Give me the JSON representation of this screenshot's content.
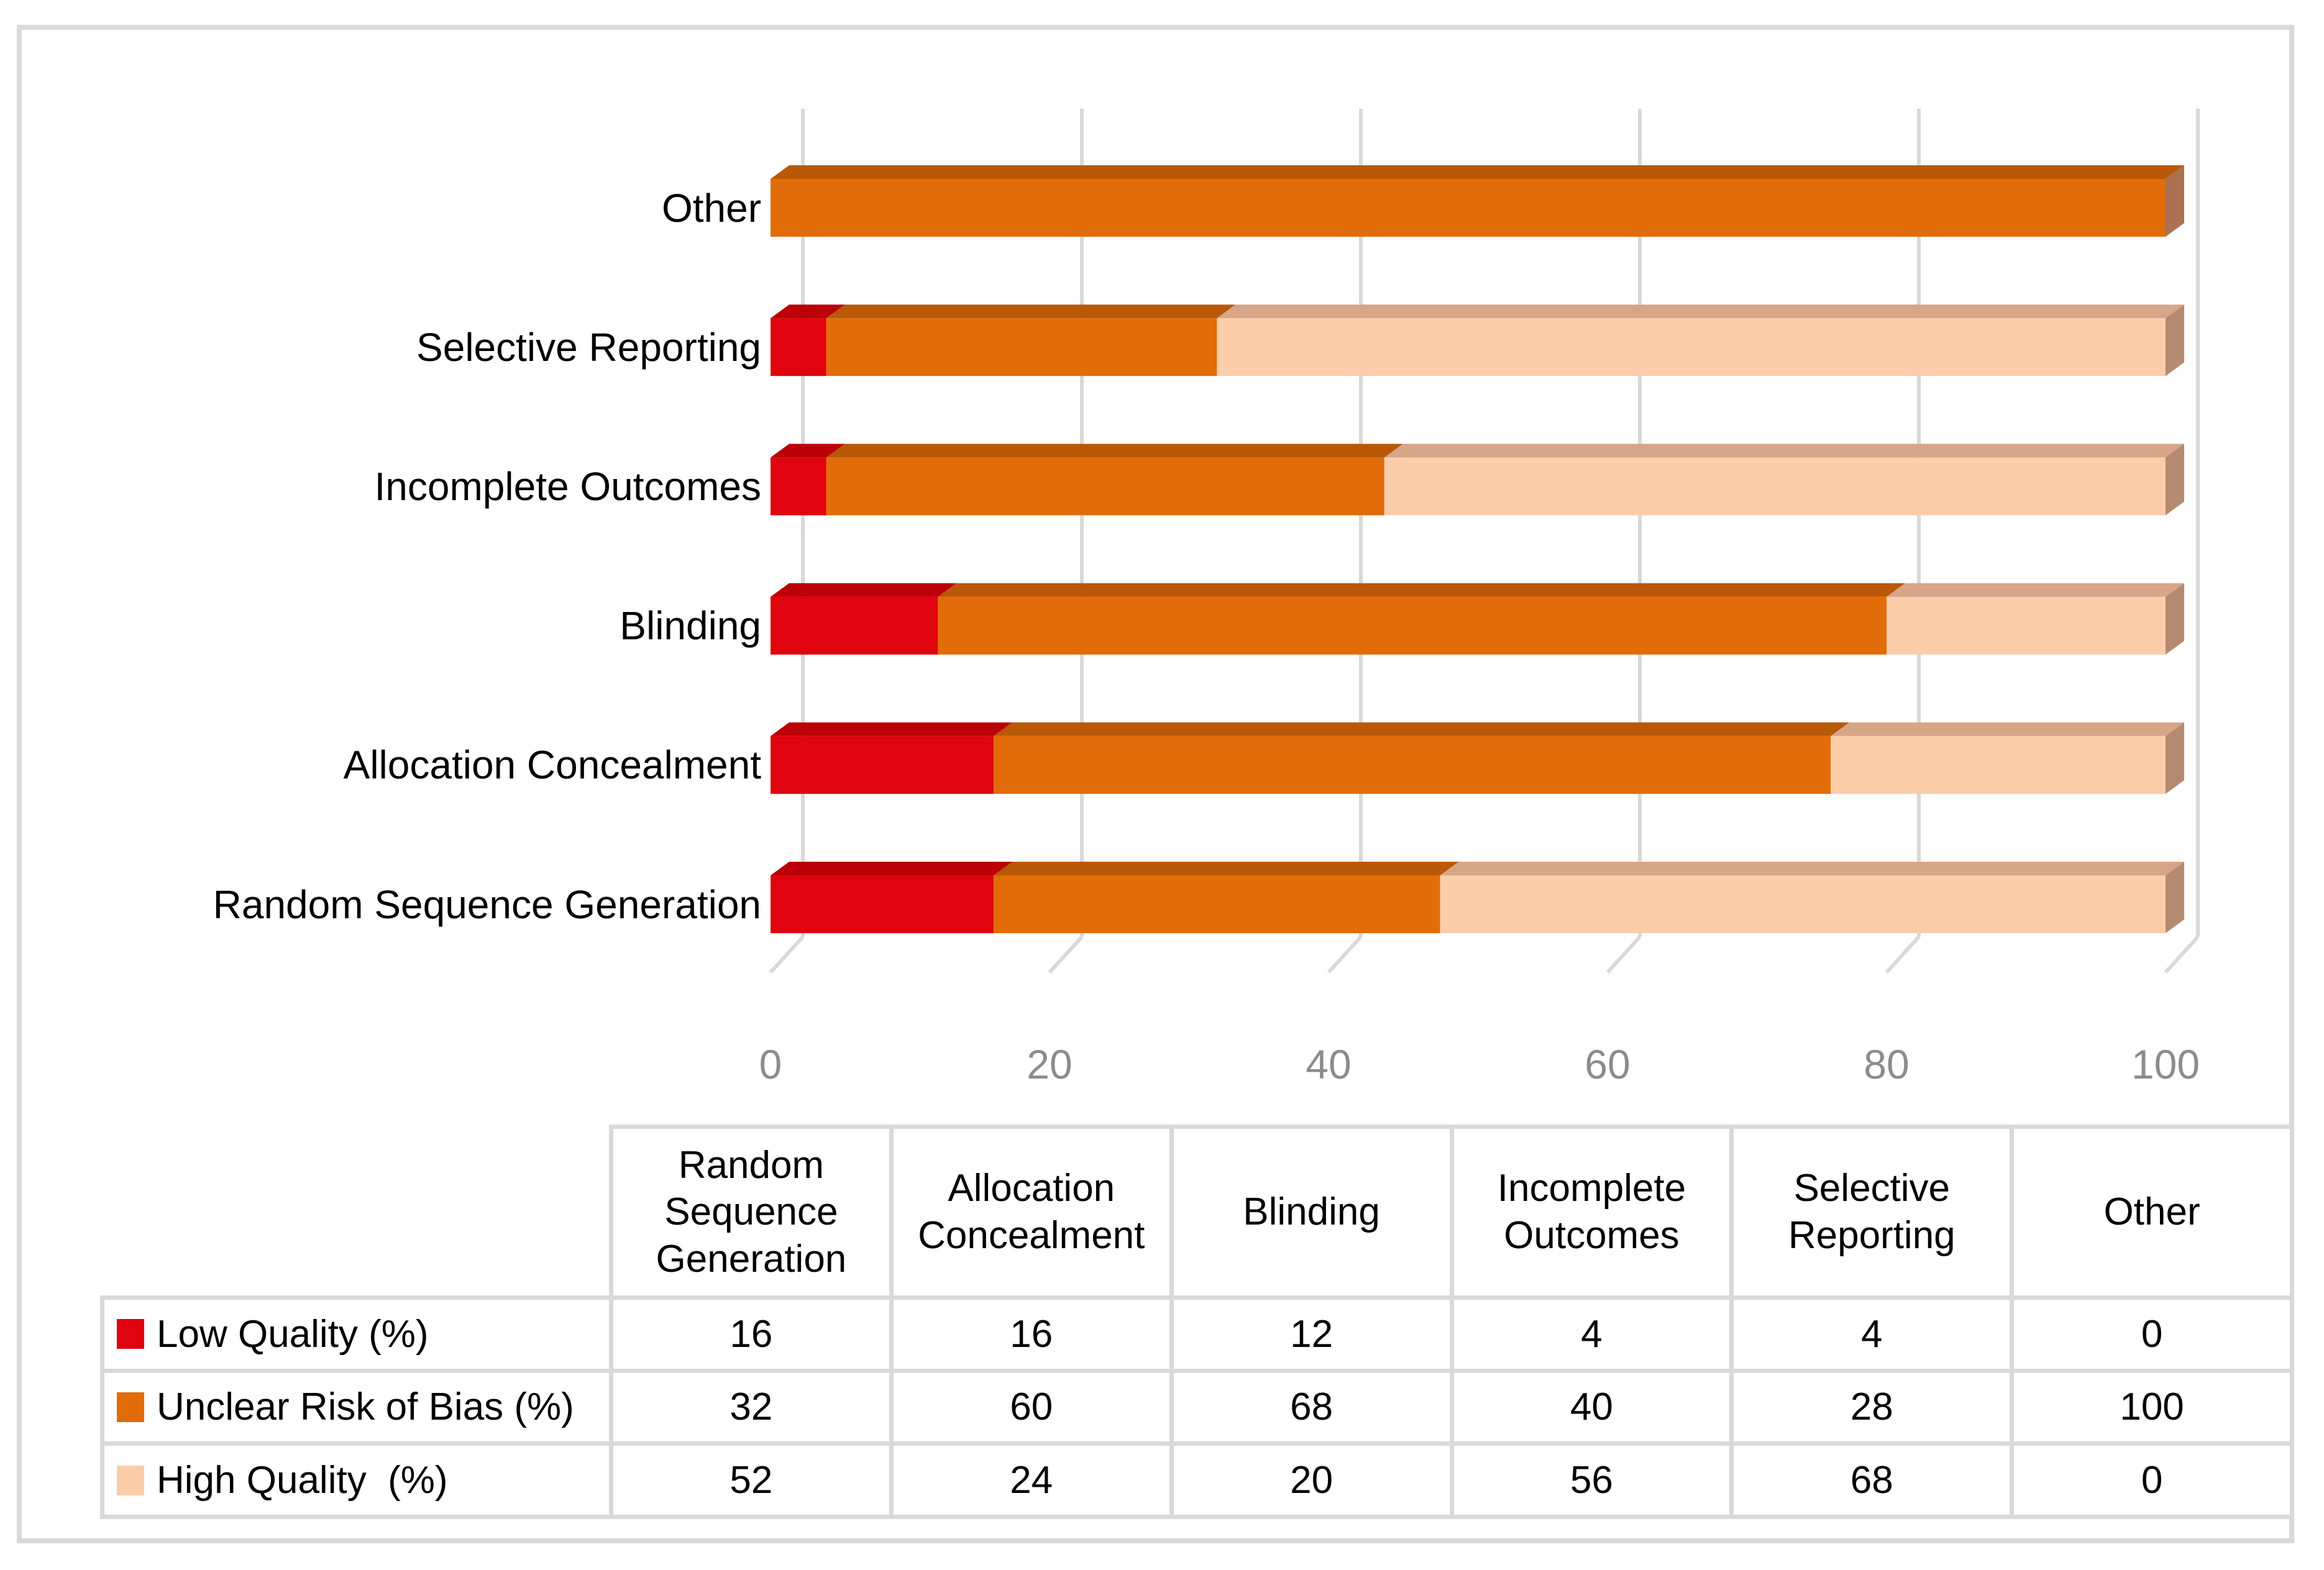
{
  "figure": {
    "background": "#FFFFFF",
    "border_color": "#D9D9D9"
  },
  "chart_data": {
    "type": "bar",
    "subtype": "stacked-horizontal-3d",
    "title": "",
    "xlabel": "",
    "ylabel": "",
    "categories": [
      "Random Sequence Generation",
      "Allocation Concealment",
      "Blinding",
      "Incomplete Outcomes",
      "Selective Reporting",
      "Other"
    ],
    "display_order_top_to_bottom": [
      5,
      4,
      3,
      2,
      1,
      0
    ],
    "series": [
      {
        "name": "Low Quality (%)",
        "color": "#DF040D",
        "color_top": "#BB0007",
        "color_side": "#9B0006",
        "values": [
          16,
          16,
          12,
          4,
          4,
          0
        ]
      },
      {
        "name": "Unclear Risk of Bias (%)",
        "color": "#E26C0A",
        "color_top": "#B95807",
        "color_side": "#AC7150",
        "values": [
          32,
          60,
          68,
          40,
          28,
          100
        ]
      },
      {
        "name": "High Quality  (%)",
        "color": "#FBCDA9",
        "color_top": "#D7A588",
        "color_side": "#B48B70",
        "values": [
          52,
          24,
          20,
          56,
          68,
          0
        ]
      }
    ],
    "x_ticks": [
      "0",
      "20",
      "40",
      "60",
      "80",
      "100"
    ],
    "xlim": [
      0,
      100
    ],
    "grid": true,
    "gridline_color": "#D9D9D9",
    "tick_label_color": "#8C8C8C",
    "category_label_color": "#000000",
    "legend_position": "table-below-chart"
  }
}
